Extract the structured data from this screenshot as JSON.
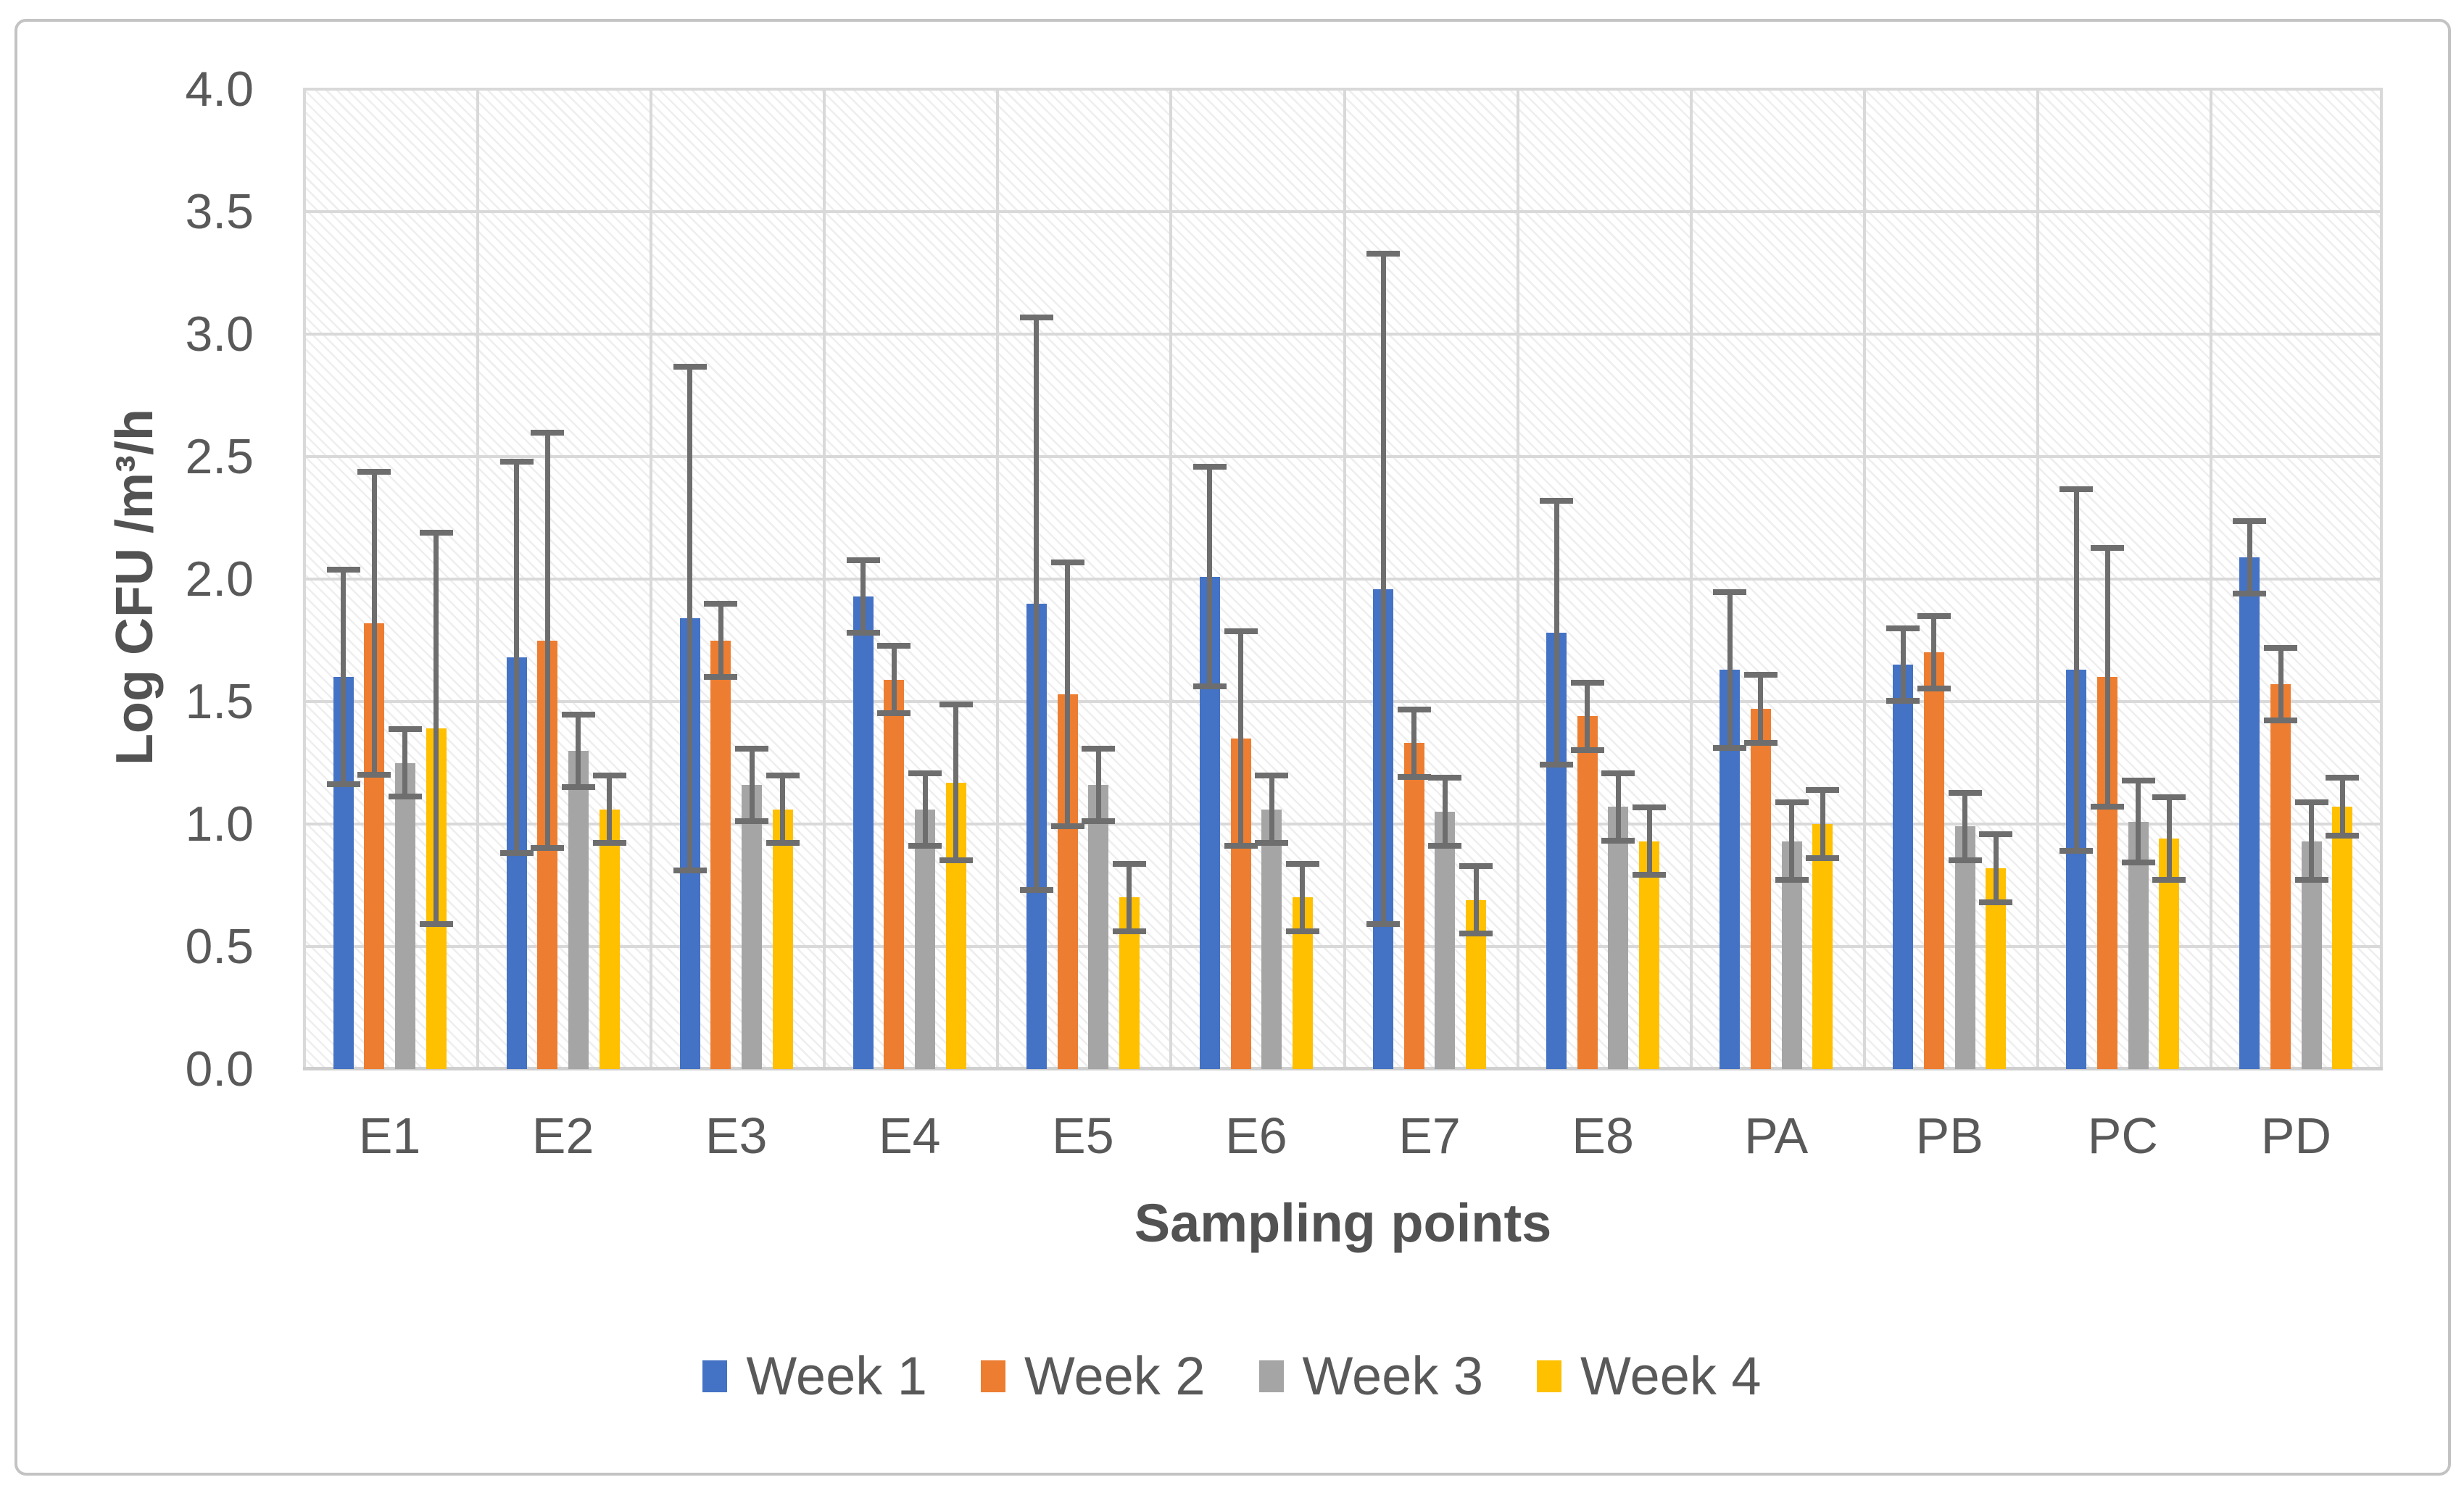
{
  "chart_data": {
    "type": "bar",
    "title": "",
    "xlabel": "Sampling points",
    "ylabel": "Log CFU /m³/h",
    "categories": [
      "E1",
      "E2",
      "E3",
      "E4",
      "E5",
      "E6",
      "E7",
      "E8",
      "PA",
      "PB",
      "PC",
      "PD"
    ],
    "series": [
      {
        "name": "Week 1",
        "color": "#4472C4",
        "values": [
          1.6,
          1.68,
          1.84,
          1.93,
          1.9,
          2.01,
          1.96,
          1.78,
          1.63,
          1.65,
          1.63,
          2.09
        ],
        "errors": [
          0.45,
          0.81,
          1.04,
          0.16,
          1.18,
          0.46,
          1.38,
          0.55,
          0.33,
          0.16,
          0.75,
          0.16
        ]
      },
      {
        "name": "Week 2",
        "color": "#ED7D31",
        "values": [
          1.82,
          1.75,
          1.75,
          1.59,
          1.53,
          1.35,
          1.33,
          1.44,
          1.47,
          1.7,
          1.6,
          1.57
        ],
        "errors": [
          0.63,
          0.86,
          0.16,
          0.15,
          0.55,
          0.45,
          0.15,
          0.15,
          0.15,
          0.16,
          0.54,
          0.16
        ]
      },
      {
        "name": "Week 3",
        "color": "#A5A5A5",
        "values": [
          1.25,
          1.3,
          1.16,
          1.06,
          1.16,
          1.06,
          1.05,
          1.07,
          0.93,
          0.99,
          1.01,
          0.93
        ],
        "errors": [
          0.15,
          0.16,
          0.16,
          0.16,
          0.16,
          0.15,
          0.15,
          0.15,
          0.17,
          0.15,
          0.18,
          0.17
        ]
      },
      {
        "name": "Week 4",
        "color": "#FFC000",
        "values": [
          1.39,
          1.06,
          1.06,
          1.17,
          0.7,
          0.7,
          0.69,
          0.93,
          1.0,
          0.82,
          0.94,
          1.07
        ],
        "errors": [
          0.81,
          0.15,
          0.15,
          0.33,
          0.15,
          0.15,
          0.15,
          0.15,
          0.15,
          0.15,
          0.18,
          0.13
        ]
      }
    ],
    "ylim": [
      0.0,
      4.0
    ],
    "ytick_step": 0.5,
    "yticks": [
      "4.0",
      "3.5",
      "3.0",
      "2.5",
      "2.0",
      "1.5",
      "1.0",
      "0.5",
      "0.0"
    ],
    "grid": "horizontal-and-vertical",
    "legend_position": "bottom",
    "error_bar_color": "#6e6e6e",
    "axis_text_color": "#595959",
    "plot_background": "light-gray-diagonal-hatch"
  }
}
